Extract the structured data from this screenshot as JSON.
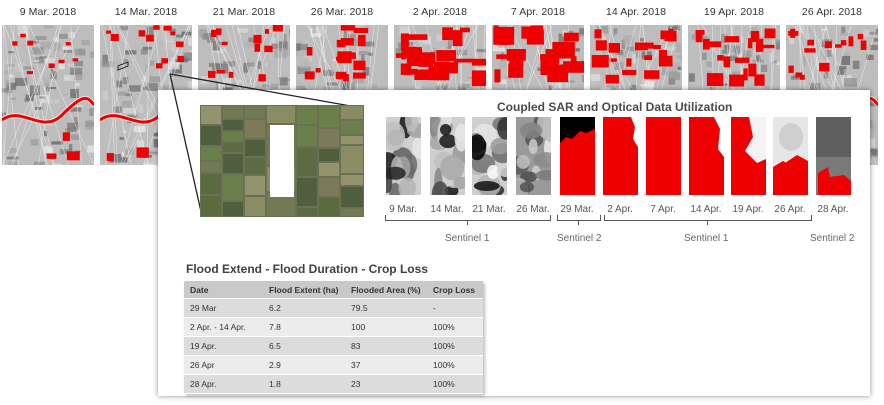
{
  "strip": {
    "dates": [
      "9 Mar. 2018",
      "14 Mar. 2018",
      "21 Mar. 2018",
      "26 Mar. 2018",
      "2 Apr. 2018",
      "7 Apr. 2018",
      "14 Apr. 2018",
      "19 Apr. 2018",
      "26 Apr. 2018"
    ],
    "flood_color": "#ee0000"
  },
  "panel": {
    "title": "Coupled SAR and Optical Data Utilization",
    "patches": [
      {
        "label": "9 Mar.",
        "kind": "sar"
      },
      {
        "label": "14 Mar.",
        "kind": "sar"
      },
      {
        "label": "21 Mar.",
        "kind": "sar"
      },
      {
        "label": "26 Mar.",
        "kind": "sar-soft"
      },
      {
        "label": "29 Mar.",
        "kind": "optical-flood"
      },
      {
        "label": "2 Apr.",
        "kind": "flood"
      },
      {
        "label": "7 Apr.",
        "kind": "flood"
      },
      {
        "label": "14 Apr.",
        "kind": "flood"
      },
      {
        "label": "19 Apr.",
        "kind": "flood-partial"
      },
      {
        "label": "26 Apr.",
        "kind": "flood-low"
      },
      {
        "label": "28 Apr.",
        "kind": "optical-low"
      }
    ],
    "sensors": [
      "Sentinel 1",
      "Sentinel 2",
      "Sentinel 1",
      "Sentinel 2"
    ]
  },
  "table": {
    "title": "Flood Extend - Flood Duration - Crop Loss",
    "headers": [
      "Date",
      "Flood Extent (ha)",
      "Flooded Area (%)",
      "Crop Loss"
    ],
    "rows": [
      [
        "29 Mar",
        "6.2",
        "79.5",
        "-"
      ],
      [
        "2 Apr. - 14 Apr.",
        "7.8",
        "100",
        "100%"
      ],
      [
        "19 Apr.",
        "6.5",
        "83",
        "100%"
      ],
      [
        "26 Apr",
        "2.9",
        "37",
        "100%"
      ],
      [
        "28 Apr.",
        "1.8",
        "23",
        "100%"
      ]
    ]
  }
}
